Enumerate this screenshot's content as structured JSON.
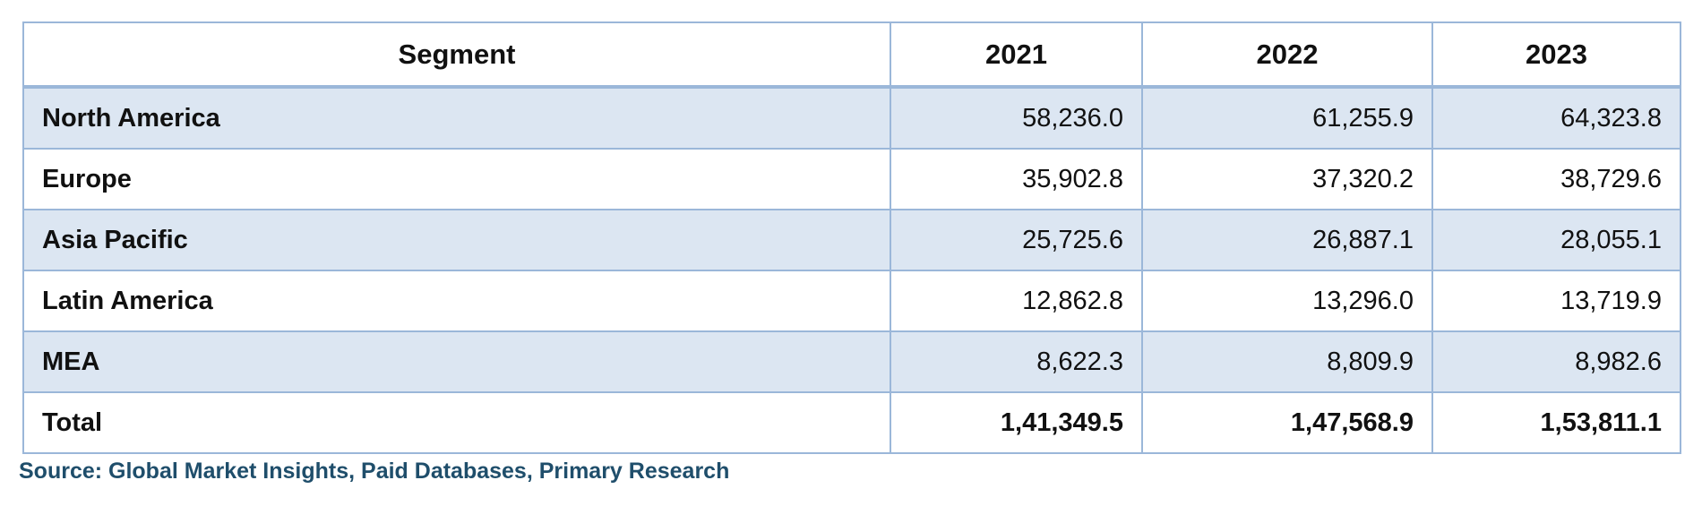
{
  "table": {
    "headers": [
      "Segment",
      "2021",
      "2022",
      "2023"
    ],
    "rows": [
      {
        "segment": "North America",
        "values": [
          "58,236.0",
          "61,255.9",
          "64,323.8"
        ]
      },
      {
        "segment": "Europe",
        "values": [
          "35,902.8",
          "37,320.2",
          "38,729.6"
        ]
      },
      {
        "segment": "Asia Pacific",
        "values": [
          "25,725.6",
          "26,887.1",
          "28,055.1"
        ]
      },
      {
        "segment": "Latin America",
        "values": [
          "12,862.8",
          "13,296.0",
          "13,719.9"
        ]
      },
      {
        "segment": "MEA",
        "values": [
          "8,622.3",
          "8,809.9",
          "8,982.6"
        ]
      },
      {
        "segment": "Total",
        "values": [
          "1,41,349.5",
          "1,47,568.9",
          "1,53,811.1"
        ]
      }
    ]
  },
  "source": "Source: Global Market Insights, Paid Databases, Primary Research",
  "colors": {
    "border": "#9bb7d9",
    "shaded_row": "#dce6f2",
    "source_text": "#1f4e6b"
  }
}
